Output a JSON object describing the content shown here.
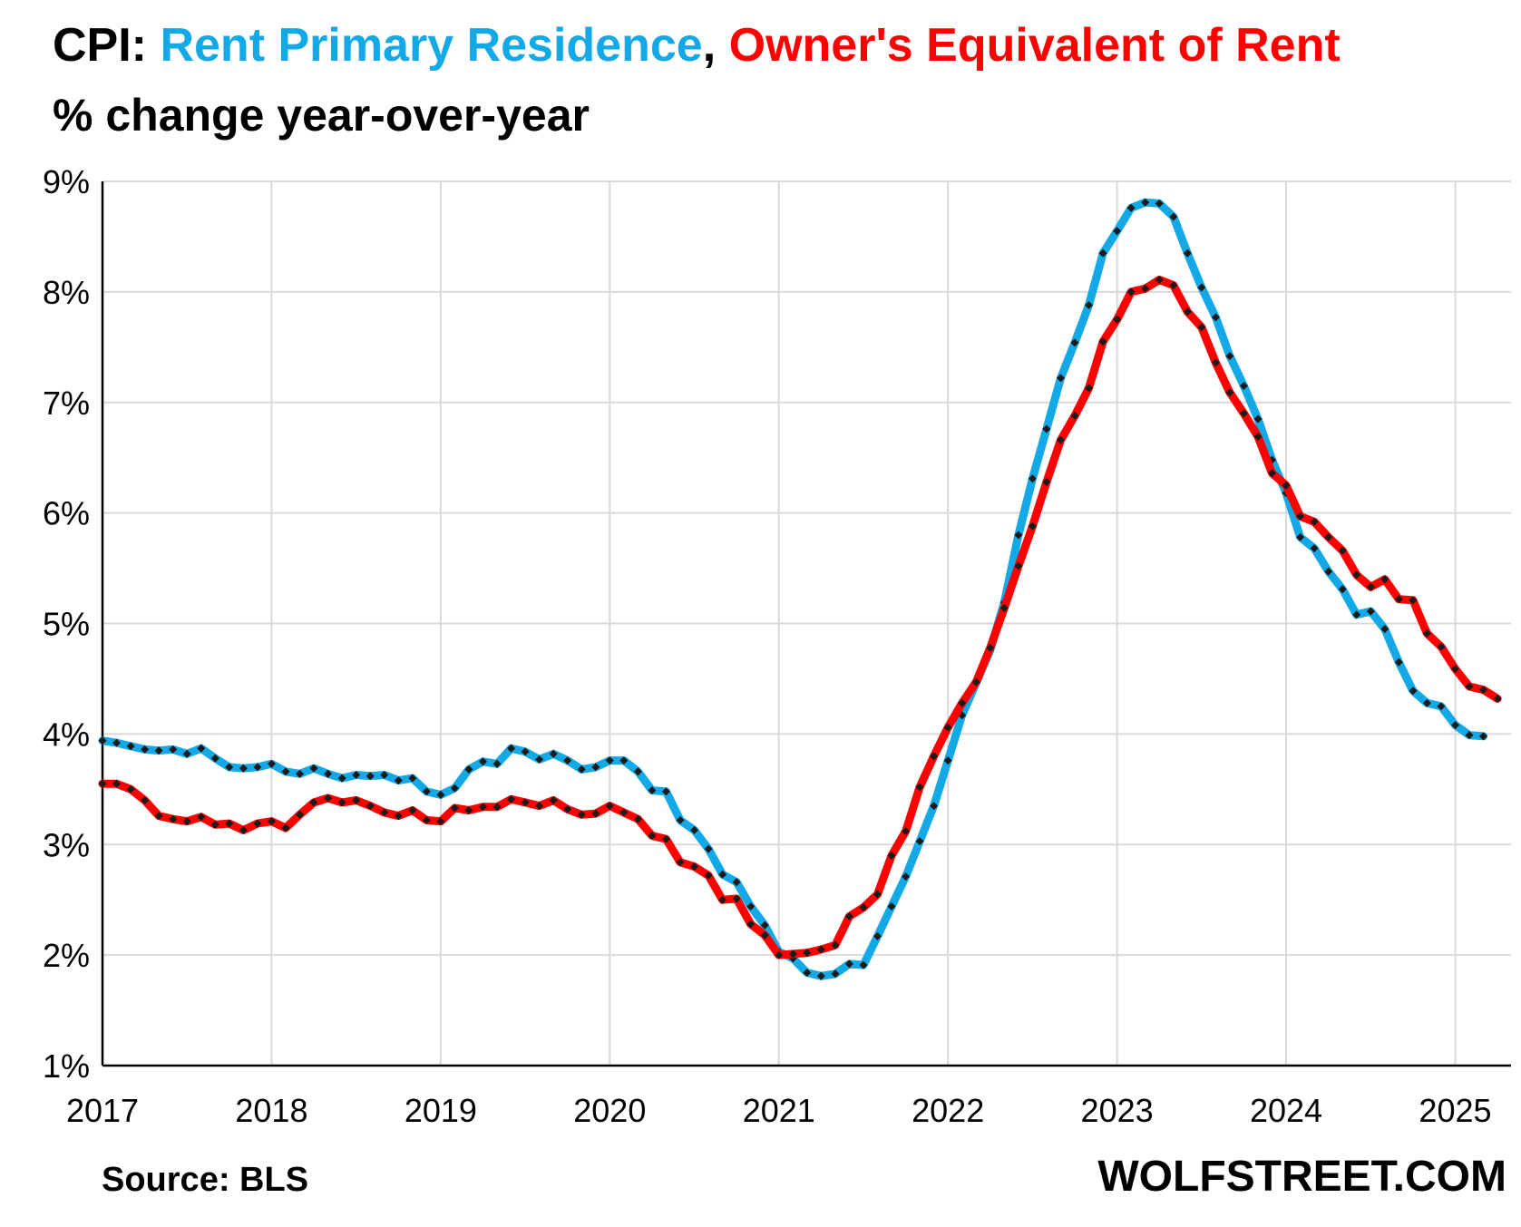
{
  "title": {
    "prefix": "CPI: ",
    "series1_name": "Rent Primary Residence",
    "separator": ", ",
    "series2_name": "Owner's Equivalent of Rent",
    "subtitle": "% change year-over-year"
  },
  "source": "Source: BLS",
  "brand": "WOLFSTREET.COM",
  "colors": {
    "rent": "#12a9e6",
    "oer": "#ff0000",
    "marker": "#1a1a1a",
    "grid": "#d9d9d9",
    "axis": "#000000"
  },
  "chart_data": {
    "type": "line",
    "title": "CPI: Rent Primary Residence, Owner's Equivalent of Rent",
    "subtitle": "% change year-over-year",
    "xlabel": "",
    "ylabel": "% change year-over-year",
    "ylim": [
      1,
      9
    ],
    "yticks": [
      "1%",
      "2%",
      "3%",
      "4%",
      "5%",
      "6%",
      "7%",
      "8%",
      "9%"
    ],
    "xlim": [
      2017,
      2025.33
    ],
    "xticks": [
      "2017",
      "2018",
      "2019",
      "2020",
      "2021",
      "2022",
      "2023",
      "2024",
      "2025"
    ],
    "grid": true,
    "frequency": "monthly",
    "start": "2017-01",
    "series": [
      {
        "name": "Rent Primary Residence",
        "color": "#12a9e6",
        "values": [
          3.94,
          3.92,
          3.89,
          3.86,
          3.85,
          3.86,
          3.82,
          3.87,
          3.78,
          3.7,
          3.69,
          3.7,
          3.73,
          3.66,
          3.64,
          3.69,
          3.64,
          3.6,
          3.63,
          3.62,
          3.63,
          3.58,
          3.6,
          3.48,
          3.45,
          3.51,
          3.68,
          3.75,
          3.73,
          3.87,
          3.84,
          3.77,
          3.82,
          3.76,
          3.68,
          3.7,
          3.76,
          3.76,
          3.66,
          3.49,
          3.48,
          3.22,
          3.13,
          2.96,
          2.73,
          2.66,
          2.44,
          2.27,
          2.03,
          1.97,
          1.84,
          1.81,
          1.83,
          1.92,
          1.91,
          2.17,
          2.44,
          2.71,
          3.03,
          3.35,
          3.76,
          4.17,
          4.46,
          4.76,
          5.19,
          5.8,
          6.31,
          6.76,
          7.22,
          7.54,
          7.88,
          8.35,
          8.55,
          8.76,
          8.81,
          8.8,
          8.68,
          8.35,
          8.04,
          7.77,
          7.42,
          7.15,
          6.85,
          6.48,
          6.18,
          5.78,
          5.68,
          5.47,
          5.31,
          5.08,
          5.11,
          4.95,
          4.65,
          4.39,
          4.28,
          4.25,
          4.08,
          3.99,
          3.98
        ]
      },
      {
        "name": "Owner's Equivalent of Rent",
        "color": "#ff0000",
        "values": [
          3.55,
          3.55,
          3.5,
          3.4,
          3.26,
          3.23,
          3.21,
          3.25,
          3.18,
          3.19,
          3.13,
          3.19,
          3.21,
          3.15,
          3.27,
          3.38,
          3.42,
          3.38,
          3.4,
          3.35,
          3.29,
          3.26,
          3.31,
          3.22,
          3.21,
          3.33,
          3.31,
          3.34,
          3.34,
          3.41,
          3.38,
          3.35,
          3.4,
          3.32,
          3.27,
          3.28,
          3.35,
          3.29,
          3.23,
          3.08,
          3.05,
          2.84,
          2.8,
          2.72,
          2.5,
          2.51,
          2.28,
          2.18,
          2.0,
          2.01,
          2.02,
          2.05,
          2.09,
          2.35,
          2.43,
          2.55,
          2.9,
          3.12,
          3.52,
          3.8,
          4.06,
          4.28,
          4.47,
          4.78,
          5.14,
          5.52,
          5.88,
          6.28,
          6.66,
          6.88,
          7.13,
          7.55,
          7.75,
          8.0,
          8.03,
          8.11,
          8.06,
          7.82,
          7.68,
          7.36,
          7.09,
          6.9,
          6.69,
          6.36,
          6.25,
          5.97,
          5.92,
          5.78,
          5.66,
          5.44,
          5.33,
          5.4,
          5.22,
          5.21,
          4.91,
          4.79,
          4.59,
          4.43,
          4.4,
          4.32
        ]
      }
    ]
  }
}
